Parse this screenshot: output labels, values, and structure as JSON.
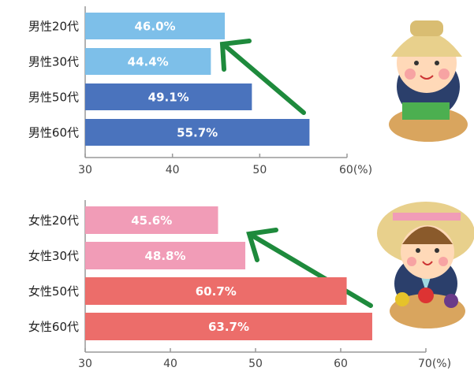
{
  "chart_data": [
    {
      "type": "bar",
      "orientation": "horizontal",
      "categories": [
        "男性20代",
        "男性30代",
        "男性50代",
        "男性60代"
      ],
      "values": [
        46.0,
        44.4,
        49.1,
        55.7
      ],
      "value_labels": [
        "46.0%",
        "44.4%",
        "49.1%",
        "55.7%"
      ],
      "colors": [
        "#7dbfe9",
        "#7dbfe9",
        "#4a73bd",
        "#4a73bd"
      ],
      "xlim": [
        30,
        60
      ],
      "xticks": [
        30,
        40,
        50,
        {
          "value": 60,
          "label": "60(%)"
        }
      ]
    },
    {
      "type": "bar",
      "orientation": "horizontal",
      "categories": [
        "女性20代",
        "女性30代",
        "女性50代",
        "女性60代"
      ],
      "values": [
        45.6,
        48.8,
        60.7,
        63.7
      ],
      "value_labels": [
        "45.6%",
        "48.8%",
        "60.7%",
        "63.7%"
      ],
      "colors": [
        "#f19cb7",
        "#f19cb7",
        "#ec6d6a",
        "#ec6d6a"
      ],
      "xlim": [
        30,
        70
      ],
      "xticks": [
        30,
        40,
        50,
        60,
        {
          "value": 70,
          "label": "70(%)"
        }
      ]
    }
  ]
}
